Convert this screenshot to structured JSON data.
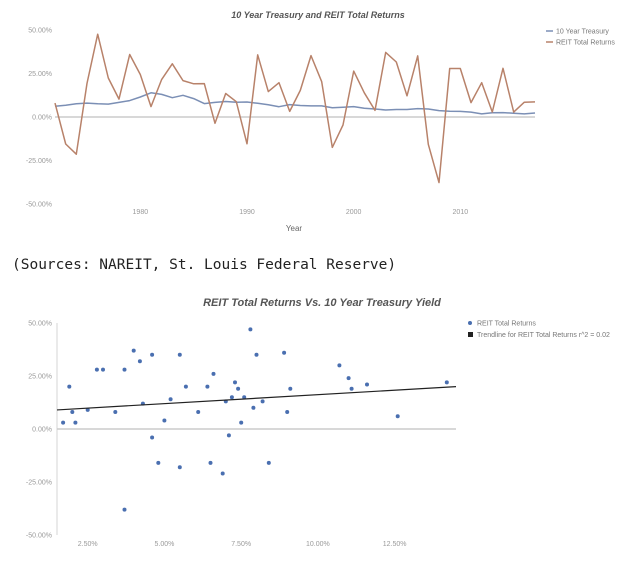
{
  "chart_data": [
    {
      "type": "line",
      "title": "10 Year Treasury and REIT Total Returns",
      "xlabel": "Year",
      "ylabel": "",
      "xlim": [
        1972,
        2017
      ],
      "ylim": [
        -50,
        50
      ],
      "x_ticks": [
        "1980",
        "1990",
        "2000",
        "2010"
      ],
      "y_ticks": [
        "50.00%",
        "25.00%",
        "0.00%",
        "-25.00%",
        "-50.00%"
      ],
      "grid": false,
      "legend": "top-right",
      "x": [
        1972,
        1973,
        1974,
        1975,
        1976,
        1977,
        1978,
        1979,
        1980,
        1981,
        1982,
        1983,
        1984,
        1985,
        1986,
        1987,
        1988,
        1989,
        1990,
        1991,
        1992,
        1993,
        1994,
        1995,
        1996,
        1997,
        1998,
        1999,
        2000,
        2001,
        2002,
        2003,
        2004,
        2005,
        2006,
        2007,
        2008,
        2009,
        2010,
        2011,
        2012,
        2013,
        2014,
        2015,
        2016,
        2017
      ],
      "series": [
        {
          "name": "10 Year Treasury",
          "color": "#7b8fb5",
          "values": [
            6.2,
            6.8,
            7.6,
            8.0,
            7.6,
            7.4,
            8.4,
            9.4,
            11.5,
            13.9,
            13.0,
            11.1,
            12.5,
            10.6,
            7.7,
            8.4,
            8.9,
            8.5,
            8.6,
            7.9,
            7.0,
            5.9,
            7.1,
            6.6,
            6.4,
            6.4,
            5.3,
            5.6,
            6.0,
            5.0,
            4.6,
            4.0,
            4.3,
            4.3,
            4.8,
            4.6,
            3.7,
            3.3,
            3.2,
            2.8,
            1.8,
            2.4,
            2.5,
            2.1,
            1.8,
            2.3
          ]
        },
        {
          "name": "REIT Total Returns",
          "color": "#b8826a",
          "values": [
            8.0,
            -15.5,
            -21.4,
            19.3,
            47.6,
            22.4,
            10.3,
            35.9,
            24.4,
            6.0,
            21.6,
            30.6,
            20.9,
            19.1,
            19.2,
            -3.6,
            13.5,
            8.8,
            -15.4,
            35.7,
            14.6,
            19.7,
            3.2,
            15.3,
            35.3,
            20.3,
            -17.5,
            -4.6,
            26.4,
            13.9,
            3.8,
            37.1,
            31.6,
            12.2,
            35.1,
            -15.7,
            -37.7,
            27.9,
            27.9,
            8.3,
            19.7,
            2.9,
            28.0,
            2.8,
            8.5,
            8.7
          ]
        }
      ]
    },
    {
      "type": "scatter",
      "title": "REIT Total Returns Vs. 10 Year Treasury Yield",
      "xlabel": "",
      "ylabel": "",
      "xlim": [
        1.5,
        14.5
      ],
      "ylim": [
        -50,
        50
      ],
      "x_ticks": [
        "2.50%",
        "5.00%",
        "7.50%",
        "10.00%",
        "12.50%"
      ],
      "y_ticks": [
        "50.00%",
        "25.00%",
        "0.00%",
        "-25.00%",
        "-50.00%"
      ],
      "grid": false,
      "legend": "top-right",
      "series": [
        {
          "name": "REIT Total Returns",
          "color": "#4a6fb0",
          "points": [
            [
              1.7,
              3
            ],
            [
              1.9,
              20
            ],
            [
              2.0,
              8
            ],
            [
              2.1,
              3
            ],
            [
              2.5,
              9
            ],
            [
              2.8,
              28
            ],
            [
              3.0,
              28
            ],
            [
              3.4,
              8
            ],
            [
              3.7,
              28
            ],
            [
              3.7,
              -38
            ],
            [
              4.0,
              37
            ],
            [
              4.2,
              32
            ],
            [
              4.3,
              12
            ],
            [
              4.6,
              35
            ],
            [
              4.6,
              -4
            ],
            [
              4.8,
              -16
            ],
            [
              5.0,
              4
            ],
            [
              5.2,
              14
            ],
            [
              5.5,
              35
            ],
            [
              5.5,
              -18
            ],
            [
              5.7,
              20
            ],
            [
              6.1,
              8
            ],
            [
              6.4,
              20
            ],
            [
              6.5,
              -16
            ],
            [
              6.6,
              26
            ],
            [
              6.9,
              -21
            ],
            [
              7.0,
              13
            ],
            [
              7.1,
              -3
            ],
            [
              7.2,
              15
            ],
            [
              7.3,
              22
            ],
            [
              7.4,
              19
            ],
            [
              7.5,
              3
            ],
            [
              7.6,
              15
            ],
            [
              7.8,
              47
            ],
            [
              7.9,
              10
            ],
            [
              8.0,
              35
            ],
            [
              8.2,
              13
            ],
            [
              8.4,
              -16
            ],
            [
              8.9,
              36
            ],
            [
              9.0,
              8
            ],
            [
              9.1,
              19
            ],
            [
              10.7,
              30
            ],
            [
              11.0,
              24
            ],
            [
              11.1,
              19
            ],
            [
              11.6,
              21
            ],
            [
              12.6,
              6
            ],
            [
              14.2,
              22
            ]
          ]
        },
        {
          "name": "Trendline for REIT Total Returns r^2 = 0.02",
          "color": "#222222",
          "trend": [
            [
              1.5,
              9.0
            ],
            [
              14.5,
              20.0
            ]
          ]
        }
      ]
    }
  ],
  "sources_text": "(Sources: NAREIT, St. Louis Federal Reserve)"
}
